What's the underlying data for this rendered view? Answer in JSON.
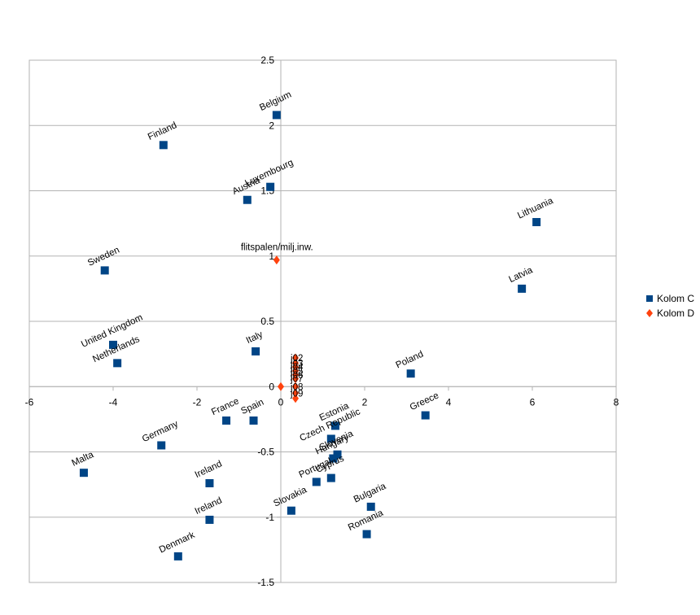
{
  "chart_data": {
    "type": "scatter",
    "xlim": [
      -6,
      8
    ],
    "ylim": [
      -1.5,
      2.5
    ],
    "x_ticks": [
      "-6",
      "-4",
      "-2",
      "0",
      "2",
      "4",
      "6",
      "8"
    ],
    "y_ticks": [
      "-1.5",
      "-1",
      "-0.5",
      "0",
      "0.5",
      "1",
      "1.5",
      "2",
      "2.5"
    ],
    "grid": "horizontal",
    "legend_position": "right",
    "series": [
      {
        "name": "Kolom C",
        "color": "#004586",
        "marker": "square",
        "points": [
          {
            "label": "Belgium",
            "x": -0.1,
            "y": 2.08
          },
          {
            "label": "Finland",
            "x": -2.8,
            "y": 1.85
          },
          {
            "label": "Luxembourg",
            "x": -0.25,
            "y": 1.53
          },
          {
            "label": "Austria",
            "x": -0.8,
            "y": 1.43
          },
          {
            "label": "Lithuania",
            "x": 6.1,
            "y": 1.26
          },
          {
            "label": "Sweden",
            "x": -4.2,
            "y": 0.89
          },
          {
            "label": "Latvia",
            "x": 5.75,
            "y": 0.75
          },
          {
            "label": "United Kingdom",
            "x": -4.0,
            "y": 0.32
          },
          {
            "label": "Netherlands",
            "x": -3.9,
            "y": 0.18
          },
          {
            "label": "Italy",
            "x": -0.6,
            "y": 0.27
          },
          {
            "label": "Poland",
            "x": 3.1,
            "y": 0.1
          },
          {
            "label": "Greece",
            "x": 3.45,
            "y": -0.22
          },
          {
            "label": "France",
            "x": -1.3,
            "y": -0.26
          },
          {
            "label": "Spain",
            "x": -0.65,
            "y": -0.26
          },
          {
            "label": "Estonia",
            "x": 1.3,
            "y": -0.3
          },
          {
            "label": "Czech Republic",
            "x": 1.2,
            "y": -0.4
          },
          {
            "label": "Slovenia",
            "x": 1.35,
            "y": -0.52
          },
          {
            "label": "Hungary",
            "x": 1.25,
            "y": -0.55
          },
          {
            "label": "Germany",
            "x": -2.85,
            "y": -0.45
          },
          {
            "label": "Malta",
            "x": -4.7,
            "y": -0.66
          },
          {
            "label": "Portugal",
            "x": 0.85,
            "y": -0.73
          },
          {
            "label": "Cyprus",
            "x": 1.2,
            "y": -0.7
          },
          {
            "label": "Ireland",
            "x": -1.7,
            "y": -0.74
          },
          {
            "label": "Bulgaria",
            "x": 2.15,
            "y": -0.92
          },
          {
            "label": "Slovakia",
            "x": 0.25,
            "y": -0.95
          },
          {
            "label": "Ireland",
            "x": -1.7,
            "y": -1.02
          },
          {
            "label": "Romania",
            "x": 2.05,
            "y": -1.13
          },
          {
            "label": "Denmark",
            "x": -2.45,
            "y": -1.3
          }
        ]
      },
      {
        "name": "Kolom D",
        "color": "#ff420e",
        "marker": "diamond",
        "points": [
          {
            "label": "flitspalen/milj.inw.",
            "x": -0.1,
            "y": 0.97
          },
          {
            "label": "j02",
            "x": 0.35,
            "y": 0.22
          },
          {
            "label": "j03",
            "x": 0.35,
            "y": 0.18
          },
          {
            "label": "j04",
            "x": 0.35,
            "y": 0.15
          },
          {
            "label": "j05",
            "x": 0.35,
            "y": 0.12
          },
          {
            "label": "j06",
            "x": 0.35,
            "y": 0.09
          },
          {
            "label": "j07",
            "x": 0.35,
            "y": 0.06
          },
          {
            "label": "j08",
            "x": 0.35,
            "y": 0.0
          },
          {
            "label": "j09",
            "x": 0.35,
            "y": -0.05
          },
          {
            "label": "",
            "x": 0.0,
            "y": 0.0
          },
          {
            "label": "",
            "x": 0.35,
            "y": -0.09
          }
        ]
      }
    ]
  }
}
